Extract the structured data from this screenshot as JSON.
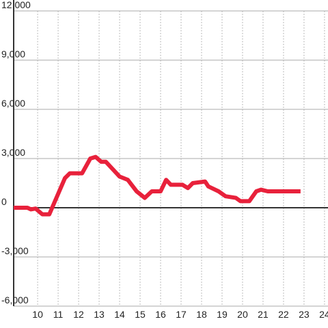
{
  "chart_data": {
    "type": "line",
    "x": [
      8.83,
      9.5,
      9.67,
      9.9,
      10.23,
      10.57,
      11.33,
      11.57,
      12.17,
      12.57,
      12.83,
      13.1,
      13.33,
      14,
      14.4,
      14.83,
      15.23,
      15.57,
      16,
      16.27,
      16.5,
      17.07,
      17.33,
      17.57,
      18.17,
      18.33,
      18.83,
      19.17,
      19.67,
      19.9,
      20.33,
      20.67,
      20.9,
      21.23,
      22.83
    ],
    "series": [
      {
        "color": "#e8213b",
        "values": [
          0,
          0,
          -100,
          -50,
          -400,
          -400,
          1800,
          2100,
          2100,
          3000,
          3100,
          2800,
          2800,
          1900,
          1700,
          1000,
          600,
          1000,
          1000,
          1700,
          1400,
          1400,
          1200,
          1500,
          1600,
          1300,
          1000,
          700,
          600,
          400,
          400,
          1000,
          1100,
          1000,
          1000
        ]
      }
    ],
    "xlim": [
      8.83,
      24.17
    ],
    "ylim": [
      -6000,
      12000
    ],
    "xticks": [
      10,
      11,
      12,
      13,
      14,
      15,
      16,
      17,
      18,
      19,
      20,
      21,
      22,
      23,
      24
    ],
    "yticks": [
      {
        "value": -6000,
        "label": "-6,000"
      },
      {
        "value": -3000,
        "label": "-3,000"
      },
      0,
      {
        "value": 3000,
        "label": "3,000"
      },
      {
        "value": 6000,
        "label": "6,000"
      },
      {
        "value": 9000,
        "label": "9,000"
      },
      {
        "value": 12000,
        "label": "12,000"
      }
    ],
    "grid": true
  }
}
